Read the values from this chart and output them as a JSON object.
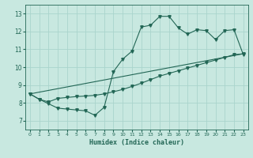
{
  "xlabel": "Humidex (Indice chaleur)",
  "xlim": [
    -0.5,
    23.5
  ],
  "ylim": [
    6.5,
    13.5
  ],
  "xticks": [
    0,
    1,
    2,
    3,
    4,
    5,
    6,
    7,
    8,
    9,
    10,
    11,
    12,
    13,
    14,
    15,
    16,
    17,
    18,
    19,
    20,
    21,
    22,
    23
  ],
  "yticks": [
    7,
    8,
    9,
    10,
    11,
    12,
    13
  ],
  "bg_color": "#c8e8e0",
  "line_color": "#226655",
  "grid_color": "#aad4cc",
  "line1_x": [
    0,
    1,
    2,
    3,
    4,
    5,
    6,
    7,
    8,
    9,
    10,
    11,
    12,
    13,
    14,
    15,
    16,
    17,
    18,
    19,
    20,
    21,
    22,
    23
  ],
  "line1_y": [
    8.5,
    8.2,
    7.95,
    7.7,
    7.65,
    7.6,
    7.55,
    7.3,
    7.75,
    9.75,
    10.45,
    10.9,
    12.25,
    12.35,
    12.85,
    12.85,
    12.2,
    11.85,
    12.1,
    12.05,
    11.55,
    12.05,
    12.1,
    10.7
  ],
  "line2_x": [
    0,
    1,
    2,
    3,
    4,
    5,
    6,
    7,
    8,
    9,
    10,
    11,
    12,
    13,
    14,
    15,
    16,
    17,
    18,
    19,
    20,
    21,
    22,
    23
  ],
  "line2_y": [
    8.5,
    8.2,
    8.05,
    8.25,
    8.3,
    8.35,
    8.38,
    8.42,
    8.5,
    8.62,
    8.75,
    8.92,
    9.1,
    9.3,
    9.5,
    9.65,
    9.8,
    9.95,
    10.1,
    10.25,
    10.4,
    10.55,
    10.7,
    10.75
  ],
  "line3_x": [
    0,
    23
  ],
  "line3_y": [
    8.5,
    10.75
  ]
}
